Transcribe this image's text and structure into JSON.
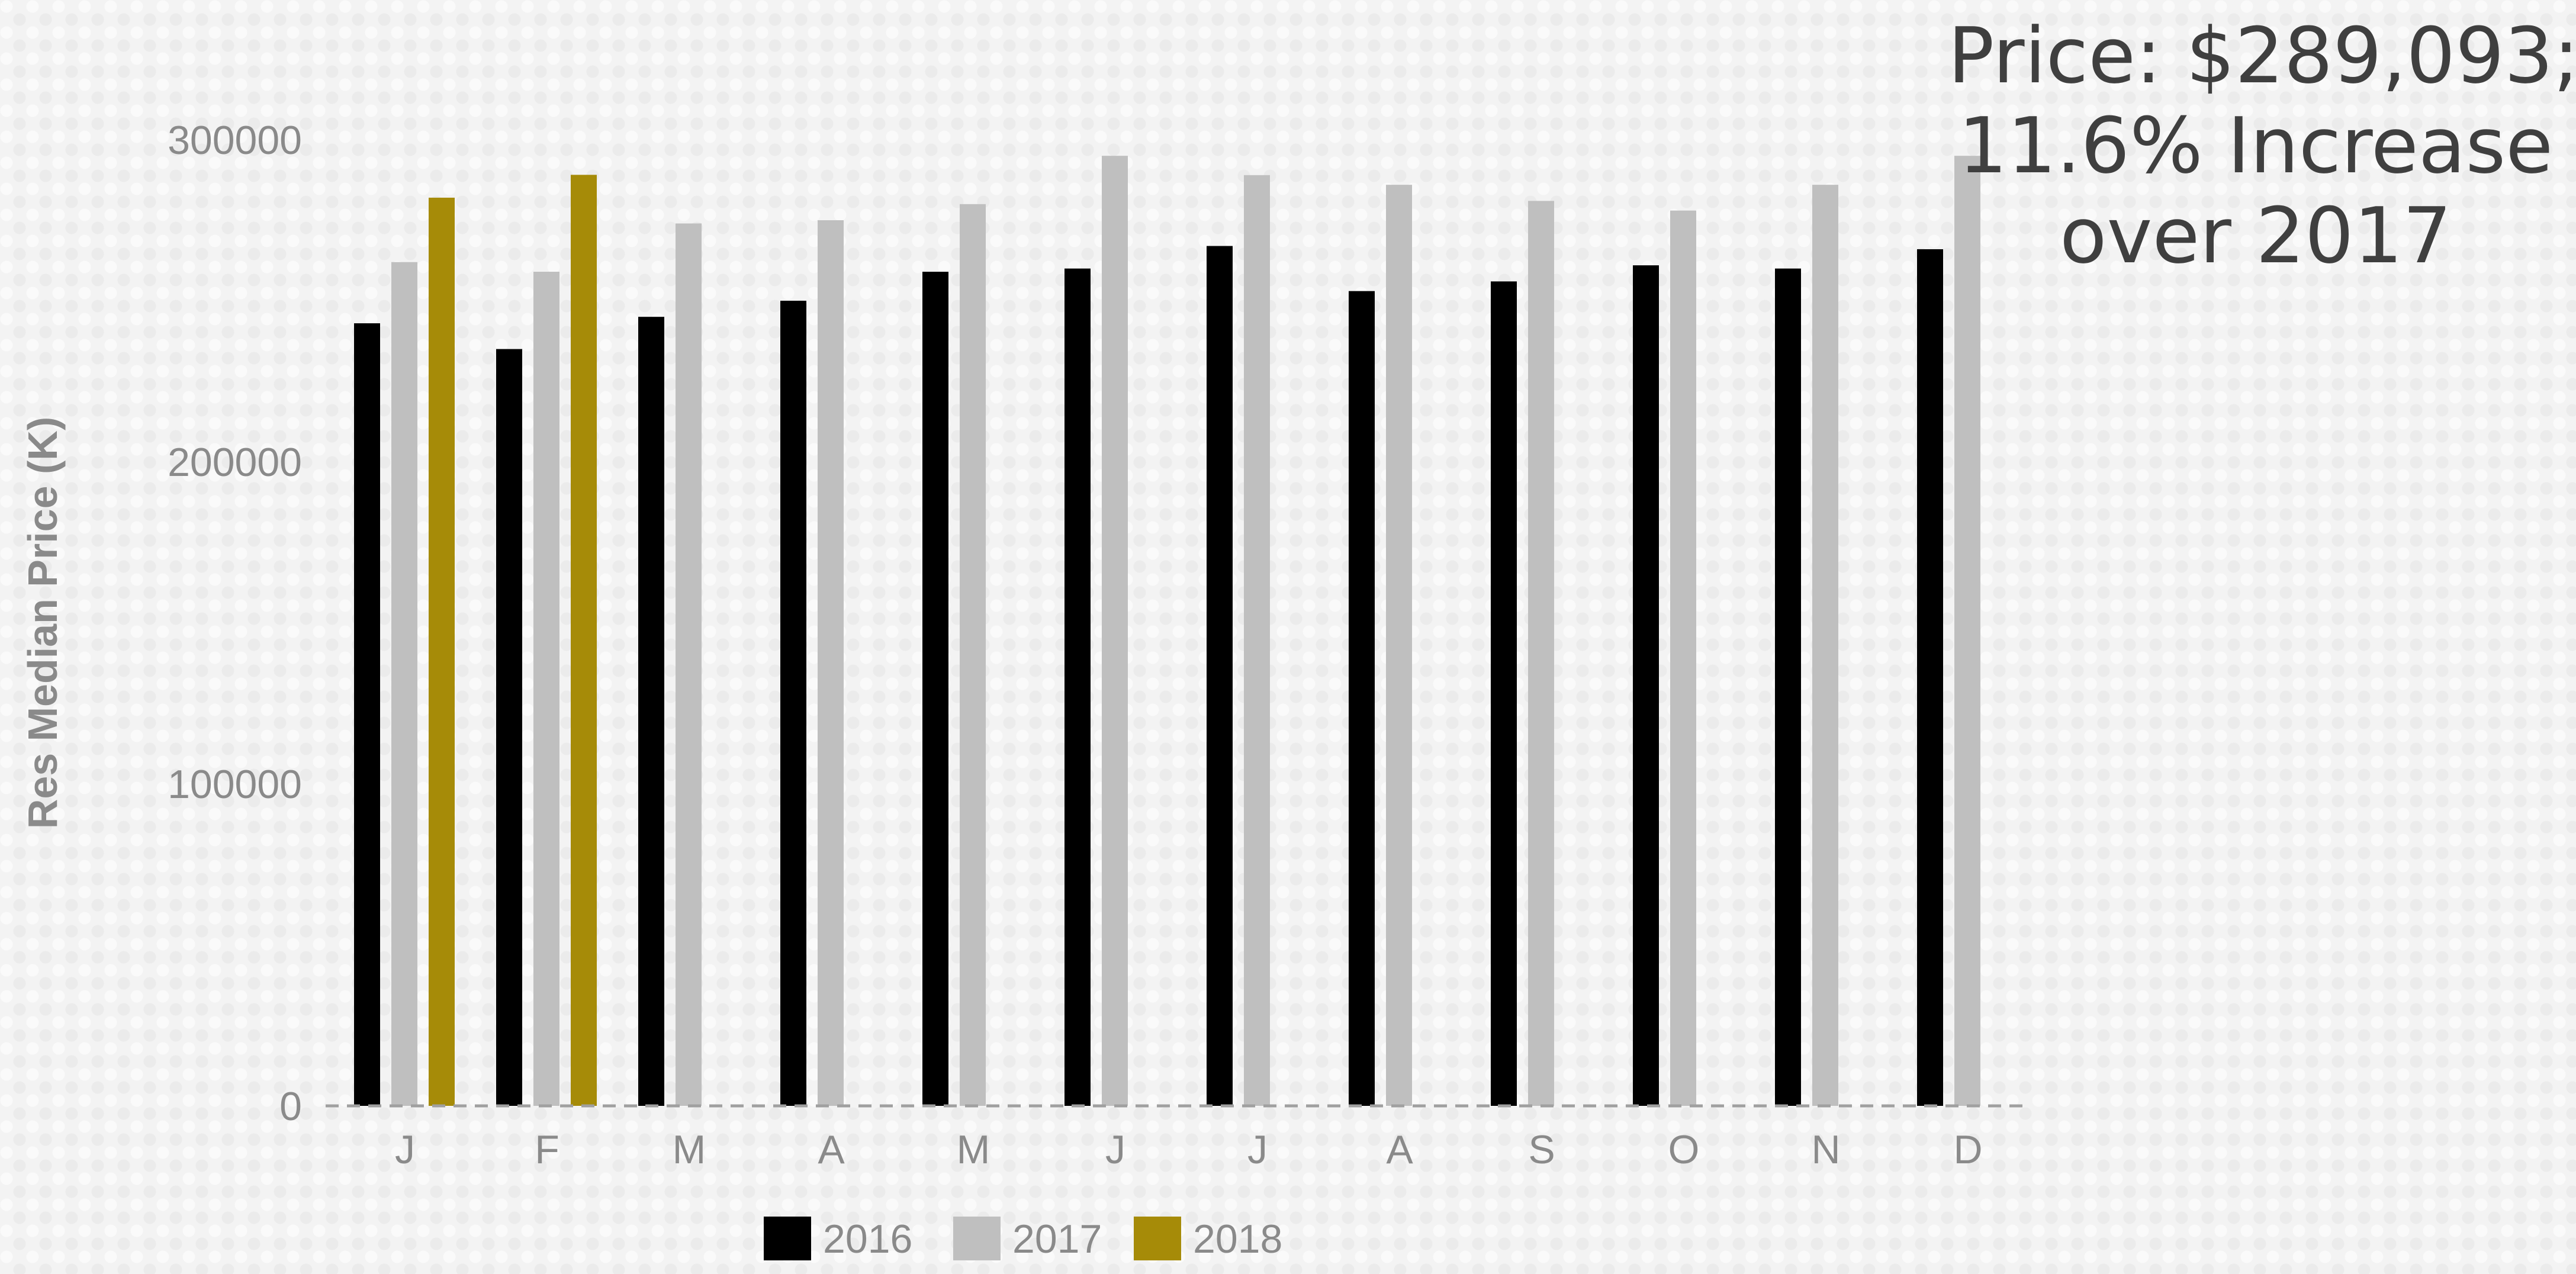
{
  "annotation": {
    "line1": "Price: $289,093;",
    "line2": "11.6%  Increase",
    "line3": "over 2017"
  },
  "chart_data": {
    "type": "bar",
    "title": "",
    "xlabel": "",
    "ylabel": "Res Median Price (K)",
    "ylim": [
      0,
      300000
    ],
    "yticks": [
      0,
      100000,
      200000,
      300000
    ],
    "ytick_labels": [
      "0",
      "100000",
      "200000",
      "300000"
    ],
    "categories": [
      "J",
      "F",
      "M",
      "A",
      "M",
      "J",
      "J",
      "A",
      "S",
      "O",
      "N",
      "D"
    ],
    "series": [
      {
        "name": "2016",
        "color": "#000000",
        "values": [
          243000,
          235000,
          245000,
          250000,
          259000,
          260000,
          267000,
          253000,
          256000,
          261000,
          260000,
          266000
        ]
      },
      {
        "name": "2017",
        "color": "#bfbfbf",
        "values": [
          262000,
          259000,
          274000,
          275000,
          280000,
          295000,
          289000,
          286000,
          281000,
          278000,
          286000,
          295000
        ]
      },
      {
        "name": "2018",
        "color": "#a68b08",
        "values": [
          282000,
          289093,
          null,
          null,
          null,
          null,
          null,
          null,
          null,
          null,
          null,
          null
        ]
      }
    ],
    "grid": false,
    "legend_position": "bottom"
  }
}
